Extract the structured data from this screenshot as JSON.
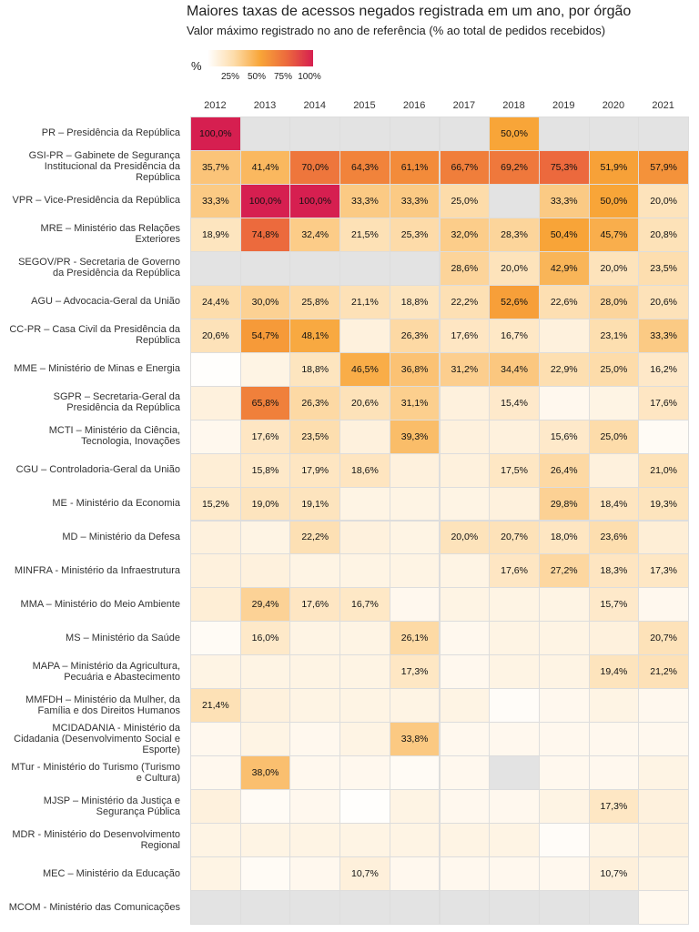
{
  "chart_data": {
    "type": "heatmap",
    "title": "Maiores taxas de acessos negados registrada em um ano, por órgão",
    "subtitle": "Valor máximo registrado no ano de referência (% ao total de pedidos recebidos)",
    "legend_title": "%",
    "clim": [
      0,
      100
    ],
    "cticks": [
      {
        "value": 25,
        "label": "25%"
      },
      {
        "value": 50,
        "label": "50%"
      },
      {
        "value": 75,
        "label": "75%"
      },
      {
        "value": 100,
        "label": "100%"
      }
    ],
    "colors": [
      "#ffffff",
      "#fddcaa",
      "#f8a538",
      "#ec6a3d",
      "#d61f50"
    ],
    "missing_color": "#e3e3e3",
    "x": [
      "2012",
      "2013",
      "2014",
      "2015",
      "2016",
      "2017",
      "2018",
      "2019",
      "2020",
      "2021"
    ],
    "categories": [
      "PR – Presidência da República",
      "GSI-PR – Gabinete de Segurança Institucional da Presidência da República",
      "VPR – Vice-Presidência da República",
      "MRE – Ministério das Relações Exteriores",
      "SEGOV/PR - Secretaria de Governo da Presidência da República",
      "AGU – Advocacia-Geral da União",
      "CC-PR – Casa Civil da Presidência da República",
      "MME – Ministério de Minas e Energia",
      "SGPR – Secretaria-Geral da Presidência da República",
      "MCTI – Ministério da Ciência, Tecnologia, Inovações",
      "CGU – Controladoria-Geral da União",
      "ME - Ministério da Economia",
      "MD – Ministério da Defesa",
      "MINFRA - Ministério da Infraestrutura",
      "MMA – Ministério do Meio Ambiente",
      "MS – Ministério da Saúde",
      "MAPA – Ministério da Agricultura, Pecuária e Abastecimento",
      "MMFDH – Ministério da Mulher, da Família e dos Direitos Humanos",
      "MCIDADANIA - Ministério da Cidadania (Desenvolvimento Social e Esporte)",
      "MTur - Ministério do Turismo (Turismo e Cultura)",
      "MJSP – Ministério da Justiça e Segurança Pública",
      "MDR - Ministério do Desenvolvimento Regional",
      "MEC – Ministério da Educação",
      "MCOM - Ministério das Comunicações"
    ],
    "values": [
      [
        100.0,
        null,
        null,
        null,
        null,
        null,
        50.0,
        null,
        null,
        null
      ],
      [
        35.7,
        41.4,
        70.0,
        64.3,
        61.1,
        66.7,
        69.2,
        75.3,
        51.9,
        57.9
      ],
      [
        33.3,
        100.0,
        100.0,
        33.3,
        33.3,
        25.0,
        null,
        33.3,
        50.0,
        20.0
      ],
      [
        18.9,
        74.8,
        32.4,
        21.5,
        25.3,
        32.0,
        28.3,
        50.4,
        45.7,
        20.8
      ],
      [
        null,
        null,
        null,
        null,
        null,
        28.6,
        20.0,
        42.9,
        20.0,
        23.5
      ],
      [
        24.4,
        30.0,
        25.8,
        21.1,
        18.8,
        22.2,
        52.6,
        22.6,
        28.0,
        20.6
      ],
      [
        20.6,
        54.7,
        48.1,
        10,
        26.3,
        17.6,
        16.7,
        10,
        23.1,
        33.3
      ],
      [
        1,
        8,
        18.8,
        46.5,
        36.8,
        31.2,
        34.4,
        22.9,
        25.0,
        16.2
      ],
      [
        10,
        65.8,
        26.3,
        20.6,
        31.1,
        10,
        15.4,
        5,
        8,
        17.6
      ],
      [
        5,
        17.6,
        23.5,
        10,
        39.3,
        10,
        10,
        15.6,
        25.0,
        3
      ],
      [
        12,
        15.8,
        17.9,
        18.6,
        10,
        10,
        17.5,
        26.4,
        10,
        21.0
      ],
      [
        15.2,
        19.0,
        19.1,
        8,
        8,
        8,
        10,
        29.8,
        18.4,
        19.3
      ],
      [
        10,
        8,
        22.2,
        10,
        8,
        20.0,
        20.7,
        18.0,
        23.6,
        12
      ],
      [
        10,
        10,
        8,
        8,
        8,
        8,
        17.6,
        27.2,
        18.3,
        17.3
      ],
      [
        12,
        29.4,
        17.6,
        16.7,
        5,
        8,
        8,
        8,
        15.7,
        5
      ],
      [
        3,
        16.0,
        8,
        8,
        26.1,
        5,
        8,
        8,
        10,
        20.7
      ],
      [
        8,
        8,
        8,
        8,
        17.3,
        5,
        8,
        8,
        19.4,
        21.2
      ],
      [
        21.4,
        10,
        8,
        8,
        8,
        8,
        2,
        5,
        8,
        5
      ],
      [
        5,
        8,
        5,
        8,
        33.8,
        5,
        5,
        5,
        5,
        5
      ],
      [
        5,
        38.0,
        5,
        5,
        3,
        5,
        null,
        5,
        5,
        8
      ],
      [
        10,
        3,
        5,
        1,
        8,
        5,
        5,
        8,
        17.3,
        10
      ],
      [
        8,
        8,
        8,
        8,
        8,
        8,
        8,
        2,
        8,
        10
      ],
      [
        8,
        3,
        5,
        10.7,
        5,
        5,
        5,
        5,
        10.7,
        8
      ],
      [
        null,
        null,
        null,
        null,
        null,
        null,
        null,
        null,
        null,
        5
      ]
    ],
    "value_labels": [
      [
        "100,0%",
        null,
        null,
        null,
        null,
        null,
        "50,0%",
        null,
        null,
        null
      ],
      [
        "35,7%",
        "41,4%",
        "70,0%",
        "64,3%",
        "61,1%",
        "66,7%",
        "69,2%",
        "75,3%",
        "51,9%",
        "57,9%"
      ],
      [
        "33,3%",
        "100,0%",
        "100,0%",
        "33,3%",
        "33,3%",
        "25,0%",
        null,
        "33,3%",
        "50,0%",
        "20,0%"
      ],
      [
        "18,9%",
        "74,8%",
        "32,4%",
        "21,5%",
        "25,3%",
        "32,0%",
        "28,3%",
        "50,4%",
        "45,7%",
        "20,8%"
      ],
      [
        null,
        null,
        null,
        null,
        null,
        "28,6%",
        "20,0%",
        "42,9%",
        "20,0%",
        "23,5%"
      ],
      [
        "24,4%",
        "30,0%",
        "25,8%",
        "21,1%",
        "18,8%",
        "22,2%",
        "52,6%",
        "22,6%",
        "28,0%",
        "20,6%"
      ],
      [
        "20,6%",
        "54,7%",
        "48,1%",
        null,
        "26,3%",
        "17,6%",
        "16,7%",
        null,
        "23,1%",
        "33,3%"
      ],
      [
        null,
        null,
        "18,8%",
        "46,5%",
        "36,8%",
        "31,2%",
        "34,4%",
        "22,9%",
        "25,0%",
        "16,2%"
      ],
      [
        null,
        "65,8%",
        "26,3%",
        "20,6%",
        "31,1%",
        null,
        "15,4%",
        null,
        null,
        "17,6%"
      ],
      [
        null,
        "17,6%",
        "23,5%",
        null,
        "39,3%",
        null,
        null,
        "15,6%",
        "25,0%",
        null
      ],
      [
        null,
        "15,8%",
        "17,9%",
        "18,6%",
        null,
        null,
        "17,5%",
        "26,4%",
        null,
        "21,0%"
      ],
      [
        "15,2%",
        "19,0%",
        "19,1%",
        null,
        null,
        null,
        null,
        "29,8%",
        "18,4%",
        "19,3%"
      ],
      [
        null,
        null,
        "22,2%",
        null,
        null,
        "20,0%",
        "20,7%",
        "18,0%",
        "23,6%",
        null
      ],
      [
        null,
        null,
        null,
        null,
        null,
        null,
        "17,6%",
        "27,2%",
        "18,3%",
        "17,3%"
      ],
      [
        null,
        "29,4%",
        "17,6%",
        "16,7%",
        null,
        null,
        null,
        null,
        "15,7%",
        null
      ],
      [
        null,
        "16,0%",
        null,
        null,
        "26,1%",
        null,
        null,
        null,
        null,
        "20,7%"
      ],
      [
        null,
        null,
        null,
        null,
        "17,3%",
        null,
        null,
        null,
        "19,4%",
        "21,2%"
      ],
      [
        "21,4%",
        null,
        null,
        null,
        null,
        null,
        null,
        null,
        null,
        null
      ],
      [
        null,
        null,
        null,
        null,
        "33,8%",
        null,
        null,
        null,
        null,
        null
      ],
      [
        null,
        "38,0%",
        null,
        null,
        null,
        null,
        null,
        null,
        null,
        null
      ],
      [
        null,
        null,
        null,
        null,
        null,
        null,
        null,
        null,
        "17,3%",
        null
      ],
      [
        null,
        null,
        null,
        null,
        null,
        null,
        null,
        null,
        null,
        null
      ],
      [
        null,
        null,
        null,
        "10,7%",
        null,
        null,
        null,
        null,
        "10,7%",
        null
      ],
      [
        null,
        null,
        null,
        null,
        null,
        null,
        null,
        null,
        null,
        null
      ]
    ]
  }
}
